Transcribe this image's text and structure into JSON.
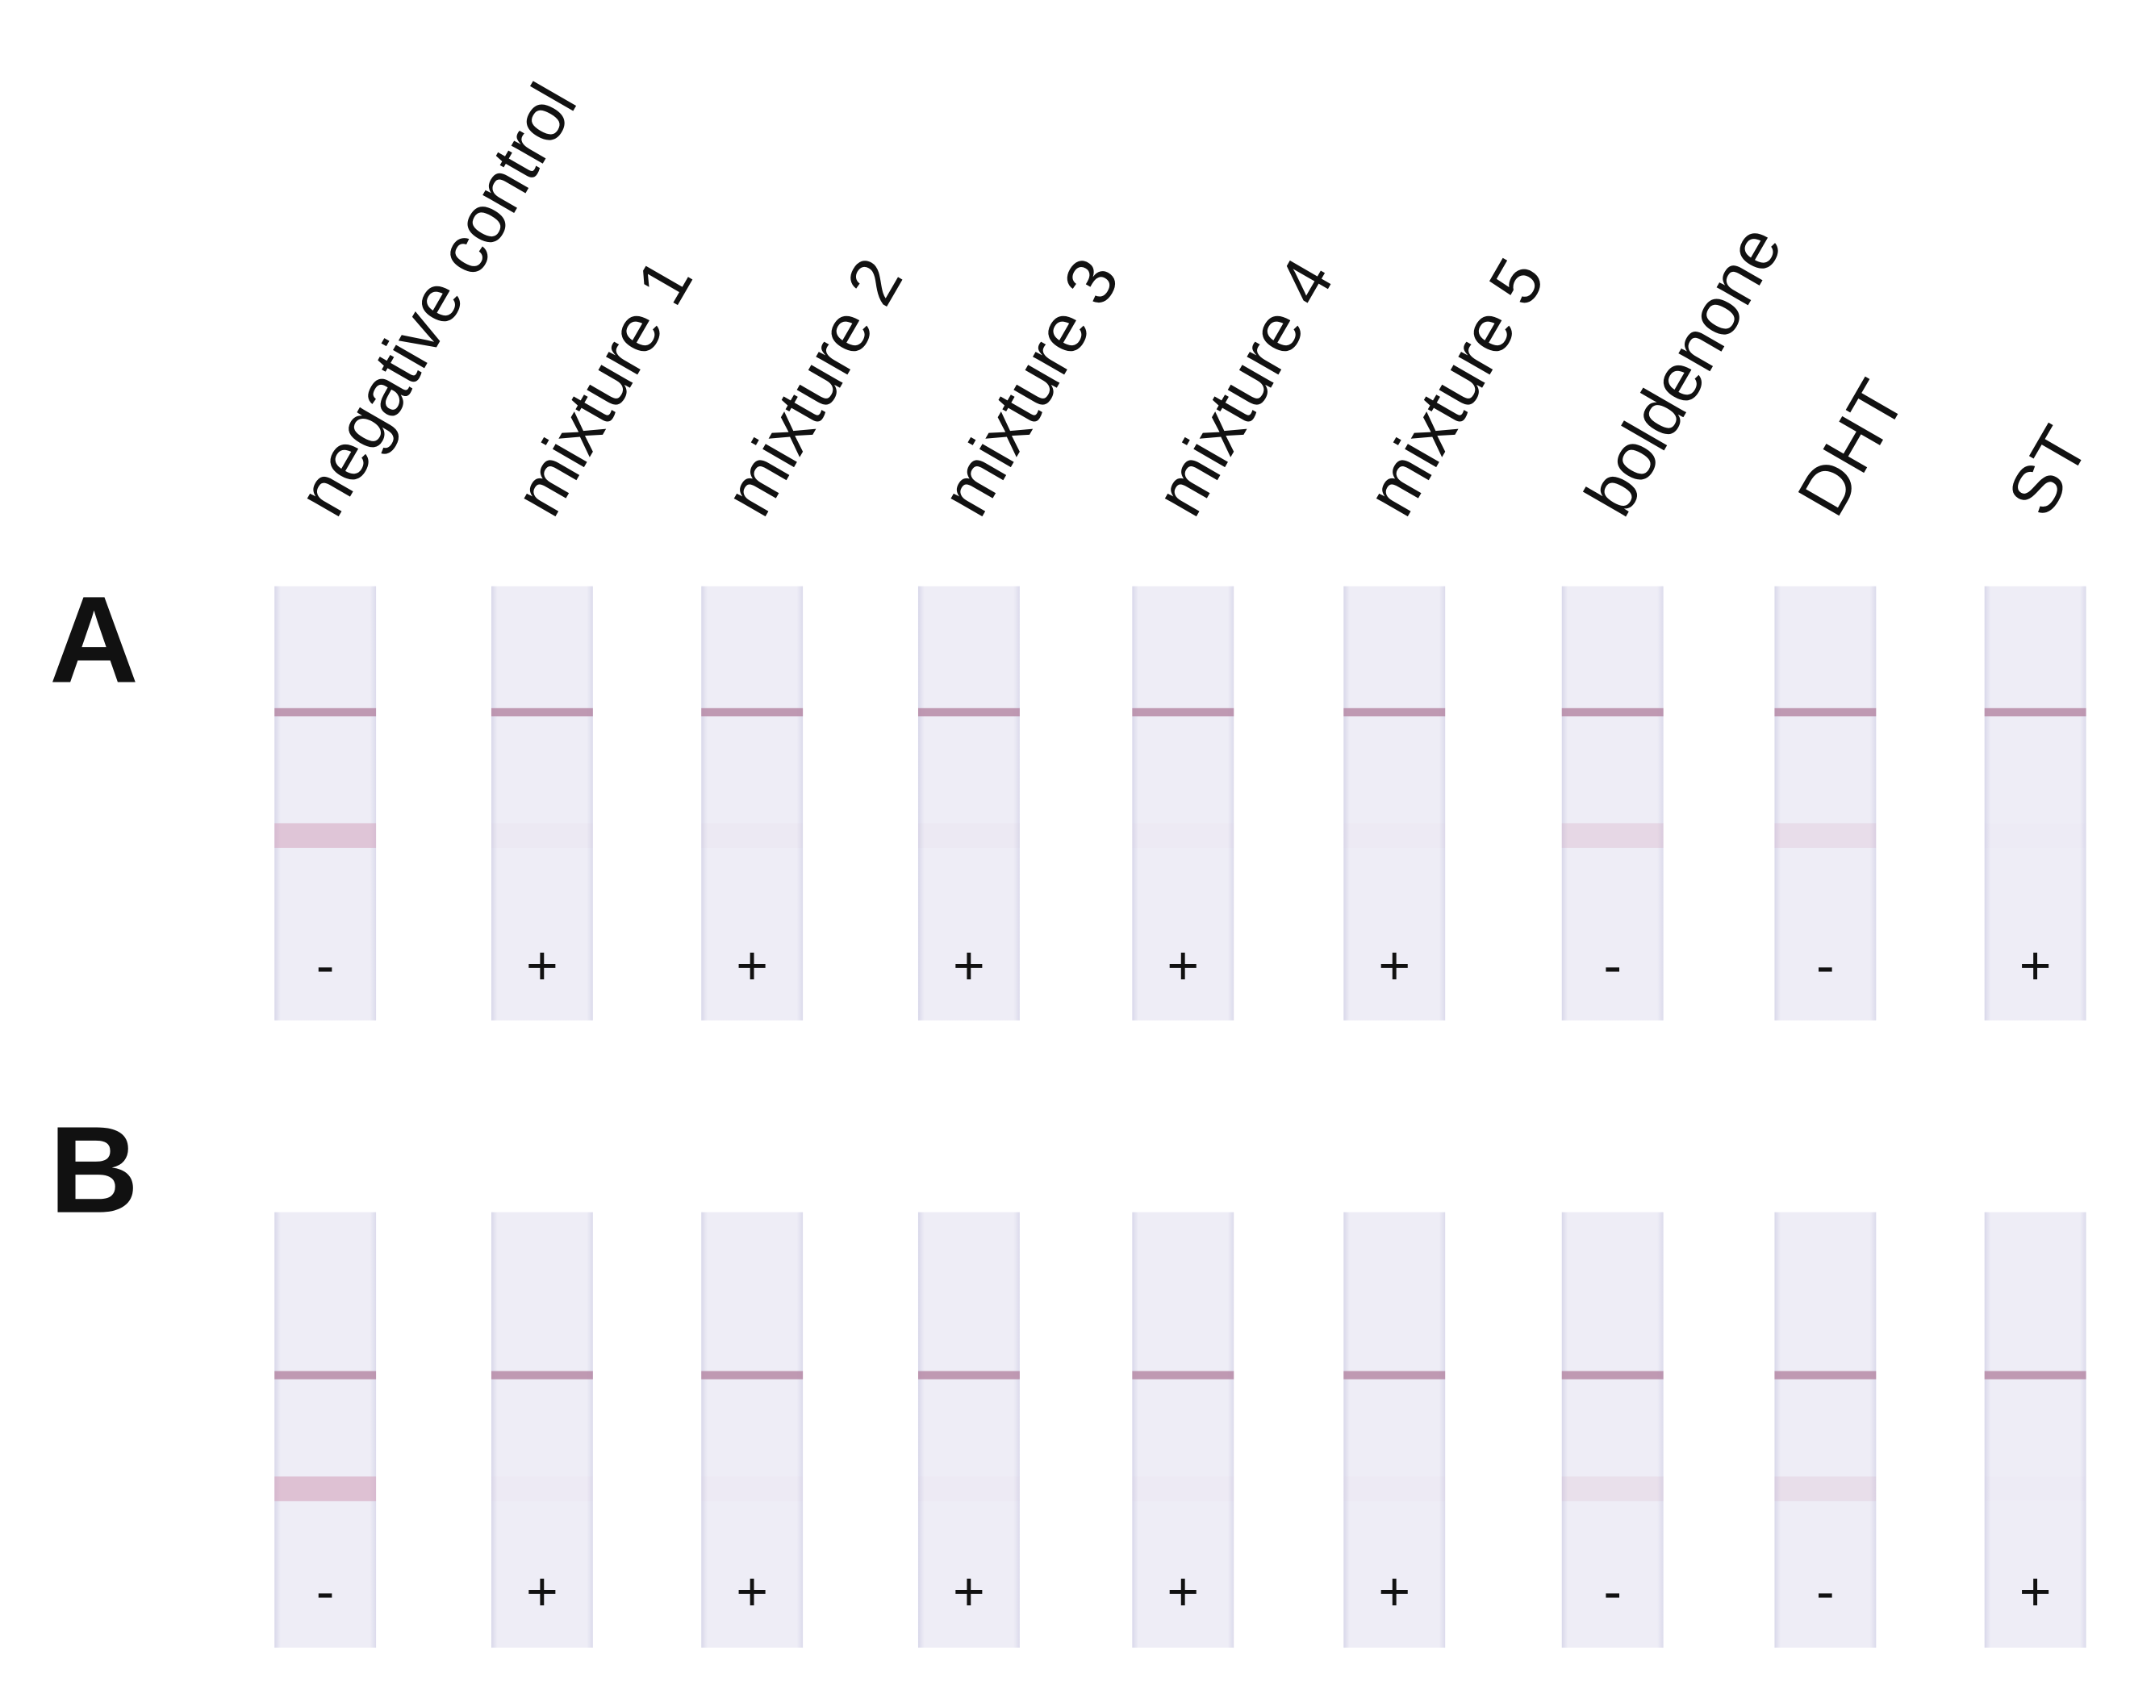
{
  "column_labels": [
    "negative control",
    "mixture 1",
    "mixture 2",
    "mixture 3",
    "mixture 4",
    "mixture 5",
    "boldenone",
    "DHT",
    "ST"
  ],
  "rows": [
    {
      "label": "A",
      "results": [
        "-",
        "+",
        "+",
        "+",
        "+",
        "+",
        "-",
        "-",
        "+"
      ]
    },
    {
      "label": "B",
      "results": [
        "-",
        "+",
        "+",
        "+",
        "+",
        "+",
        "-",
        "-",
        "+"
      ]
    }
  ]
}
